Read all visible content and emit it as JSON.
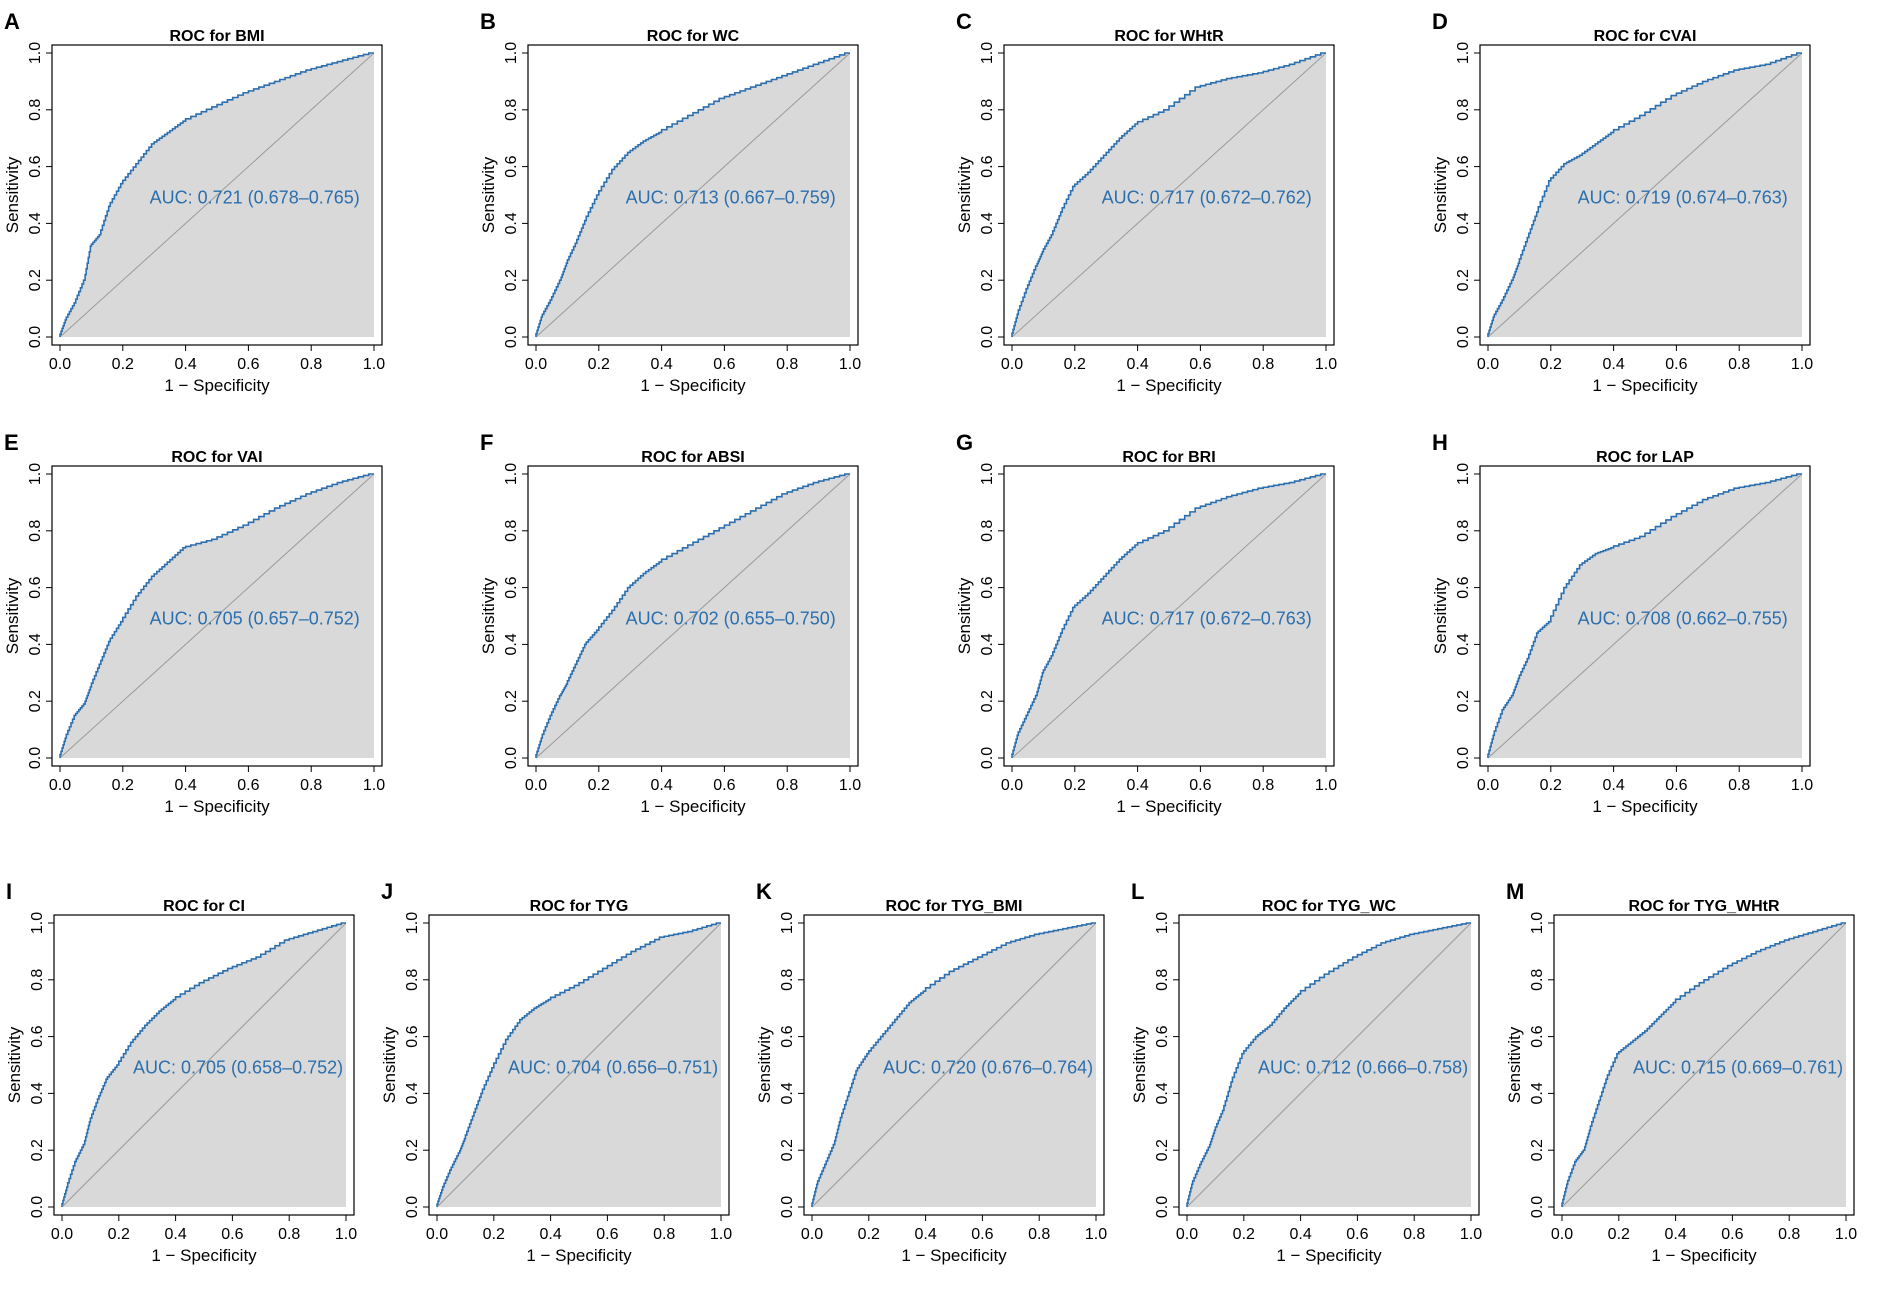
{
  "figure": {
    "background": "#ffffff"
  },
  "style": {
    "curve_color": "#2c6fae",
    "fill_color": "#d9d9d9",
    "diagonal_color": "#9a9a9a",
    "auc_color": "#2c6fae"
  },
  "chart_data": [
    {
      "letter": "A",
      "type": "line",
      "title": "ROC for BMI",
      "xlabel": "1 − Specificity",
      "ylabel": "Sensitivity",
      "xlim": [
        0,
        1
      ],
      "ylim": [
        0,
        1
      ],
      "ticks": [
        "0.0",
        "0.2",
        "0.4",
        "0.6",
        "0.8",
        "1.0"
      ],
      "auc_text": "AUC: 0.721 (0.678–0.765)",
      "x": [
        0,
        0.02,
        0.05,
        0.08,
        0.1,
        0.13,
        0.16,
        0.2,
        0.25,
        0.3,
        0.35,
        0.4,
        0.5,
        0.6,
        0.7,
        0.8,
        0.9,
        1.0
      ],
      "y": [
        0,
        0.06,
        0.12,
        0.2,
        0.32,
        0.36,
        0.46,
        0.54,
        0.61,
        0.68,
        0.72,
        0.76,
        0.81,
        0.86,
        0.9,
        0.94,
        0.97,
        1.0
      ]
    },
    {
      "letter": "B",
      "type": "line",
      "title": "ROC for WC",
      "xlabel": "1 − Specificity",
      "ylabel": "Sensitivity",
      "xlim": [
        0,
        1
      ],
      "ylim": [
        0,
        1
      ],
      "ticks": [
        "0.0",
        "0.2",
        "0.4",
        "0.6",
        "0.8",
        "1.0"
      ],
      "auc_text": "AUC: 0.713 (0.667–0.759)",
      "x": [
        0,
        0.02,
        0.05,
        0.08,
        0.1,
        0.13,
        0.16,
        0.2,
        0.25,
        0.3,
        0.35,
        0.4,
        0.5,
        0.6,
        0.7,
        0.8,
        0.9,
        1.0
      ],
      "y": [
        0,
        0.07,
        0.13,
        0.2,
        0.26,
        0.33,
        0.41,
        0.5,
        0.59,
        0.65,
        0.69,
        0.72,
        0.78,
        0.84,
        0.88,
        0.92,
        0.96,
        1.0
      ]
    },
    {
      "letter": "C",
      "type": "line",
      "title": "ROC for WHtR",
      "xlabel": "1 − Specificity",
      "ylabel": "Sensitivity",
      "xlim": [
        0,
        1
      ],
      "ylim": [
        0,
        1
      ],
      "ticks": [
        "0.0",
        "0.2",
        "0.4",
        "0.6",
        "0.8",
        "1.0"
      ],
      "auc_text": "AUC: 0.717 (0.672–0.762)",
      "x": [
        0,
        0.02,
        0.05,
        0.08,
        0.1,
        0.13,
        0.16,
        0.2,
        0.25,
        0.3,
        0.35,
        0.4,
        0.5,
        0.6,
        0.7,
        0.8,
        0.9,
        1.0
      ],
      "y": [
        0,
        0.08,
        0.17,
        0.25,
        0.3,
        0.36,
        0.44,
        0.53,
        0.58,
        0.64,
        0.7,
        0.75,
        0.8,
        0.88,
        0.91,
        0.93,
        0.96,
        1.0
      ]
    },
    {
      "letter": "D",
      "type": "line",
      "title": "ROC for CVAI",
      "xlabel": "1 − Specificity",
      "ylabel": "Sensitivity",
      "xlim": [
        0,
        1
      ],
      "ylim": [
        0,
        1
      ],
      "ticks": [
        "0.0",
        "0.2",
        "0.4",
        "0.6",
        "0.8",
        "1.0"
      ],
      "auc_text": "AUC: 0.719 (0.674–0.763)",
      "x": [
        0,
        0.02,
        0.05,
        0.08,
        0.1,
        0.13,
        0.16,
        0.2,
        0.25,
        0.3,
        0.35,
        0.4,
        0.5,
        0.6,
        0.7,
        0.8,
        0.9,
        1.0
      ],
      "y": [
        0,
        0.07,
        0.13,
        0.2,
        0.26,
        0.35,
        0.44,
        0.55,
        0.61,
        0.64,
        0.68,
        0.72,
        0.78,
        0.85,
        0.9,
        0.94,
        0.96,
        1.0
      ]
    },
    {
      "letter": "E",
      "type": "line",
      "title": "ROC for VAI",
      "xlabel": "1 − Specificity",
      "ylabel": "Sensitivity",
      "xlim": [
        0,
        1
      ],
      "ylim": [
        0,
        1
      ],
      "ticks": [
        "0.0",
        "0.2",
        "0.4",
        "0.6",
        "0.8",
        "1.0"
      ],
      "auc_text": "AUC: 0.705 (0.657–0.752)",
      "x": [
        0,
        0.02,
        0.05,
        0.08,
        0.1,
        0.13,
        0.16,
        0.2,
        0.25,
        0.3,
        0.35,
        0.4,
        0.5,
        0.6,
        0.7,
        0.8,
        0.9,
        1.0
      ],
      "y": [
        0,
        0.07,
        0.15,
        0.19,
        0.25,
        0.33,
        0.41,
        0.48,
        0.57,
        0.64,
        0.69,
        0.74,
        0.77,
        0.82,
        0.88,
        0.93,
        0.97,
        1.0
      ]
    },
    {
      "letter": "F",
      "type": "line",
      "title": "ROC for ABSI",
      "xlabel": "1 − Specificity",
      "ylabel": "Sensitivity",
      "xlim": [
        0,
        1
      ],
      "ylim": [
        0,
        1
      ],
      "ticks": [
        "0.0",
        "0.2",
        "0.4",
        "0.6",
        "0.8",
        "1.0"
      ],
      "auc_text": "AUC: 0.702 (0.655–0.750)",
      "x": [
        0,
        0.02,
        0.05,
        0.08,
        0.1,
        0.13,
        0.16,
        0.2,
        0.25,
        0.3,
        0.35,
        0.4,
        0.5,
        0.6,
        0.7,
        0.8,
        0.9,
        1.0
      ],
      "y": [
        0,
        0.07,
        0.15,
        0.22,
        0.26,
        0.33,
        0.4,
        0.45,
        0.52,
        0.6,
        0.65,
        0.69,
        0.75,
        0.81,
        0.87,
        0.93,
        0.97,
        1.0
      ]
    },
    {
      "letter": "G",
      "type": "line",
      "title": "ROC for BRI",
      "xlabel": "1 − Specificity",
      "ylabel": "Sensitivity",
      "xlim": [
        0,
        1
      ],
      "ylim": [
        0,
        1
      ],
      "ticks": [
        "0.0",
        "0.2",
        "0.4",
        "0.6",
        "0.8",
        "1.0"
      ],
      "auc_text": "AUC: 0.717 (0.672–0.763)",
      "x": [
        0,
        0.02,
        0.05,
        0.08,
        0.1,
        0.13,
        0.16,
        0.2,
        0.25,
        0.3,
        0.35,
        0.4,
        0.5,
        0.6,
        0.7,
        0.8,
        0.9,
        1.0
      ],
      "y": [
        0,
        0.08,
        0.15,
        0.22,
        0.3,
        0.36,
        0.44,
        0.53,
        0.58,
        0.64,
        0.7,
        0.75,
        0.8,
        0.88,
        0.92,
        0.95,
        0.97,
        1.0
      ]
    },
    {
      "letter": "H",
      "type": "line",
      "title": "ROC for LAP",
      "xlabel": "1 − Specificity",
      "ylabel": "Sensitivity",
      "xlim": [
        0,
        1
      ],
      "ylim": [
        0,
        1
      ],
      "ticks": [
        "0.0",
        "0.2",
        "0.4",
        "0.6",
        "0.8",
        "1.0"
      ],
      "auc_text": "AUC: 0.708 (0.662–0.755)",
      "x": [
        0,
        0.02,
        0.05,
        0.08,
        0.1,
        0.13,
        0.16,
        0.2,
        0.25,
        0.3,
        0.35,
        0.4,
        0.5,
        0.6,
        0.7,
        0.8,
        0.9,
        1.0
      ],
      "y": [
        0,
        0.08,
        0.17,
        0.22,
        0.28,
        0.35,
        0.44,
        0.48,
        0.6,
        0.68,
        0.72,
        0.74,
        0.78,
        0.85,
        0.91,
        0.95,
        0.97,
        1.0
      ]
    },
    {
      "letter": "I",
      "type": "line",
      "title": "ROC for CI",
      "xlabel": "1 − Specificity",
      "ylabel": "Sensitivity",
      "xlim": [
        0,
        1
      ],
      "ylim": [
        0,
        1
      ],
      "ticks": [
        "0.0",
        "0.2",
        "0.4",
        "0.6",
        "0.8",
        "1.0"
      ],
      "auc_text": "AUC: 0.705 (0.658–0.752)",
      "x": [
        0,
        0.02,
        0.05,
        0.08,
        0.1,
        0.13,
        0.16,
        0.2,
        0.25,
        0.3,
        0.35,
        0.4,
        0.5,
        0.6,
        0.7,
        0.8,
        0.9,
        1.0
      ],
      "y": [
        0,
        0.07,
        0.16,
        0.22,
        0.3,
        0.38,
        0.45,
        0.5,
        0.58,
        0.64,
        0.69,
        0.73,
        0.79,
        0.84,
        0.88,
        0.94,
        0.97,
        1.0
      ]
    },
    {
      "letter": "J",
      "type": "line",
      "title": "ROC for TYG",
      "xlabel": "1 − Specificity",
      "ylabel": "Sensitivity",
      "xlim": [
        0,
        1
      ],
      "ylim": [
        0,
        1
      ],
      "ticks": [
        "0.0",
        "0.2",
        "0.4",
        "0.6",
        "0.8",
        "1.0"
      ],
      "auc_text": "AUC: 0.704 (0.656–0.751)",
      "x": [
        0,
        0.02,
        0.05,
        0.08,
        0.1,
        0.13,
        0.16,
        0.2,
        0.25,
        0.3,
        0.35,
        0.4,
        0.5,
        0.6,
        0.7,
        0.8,
        0.9,
        1.0
      ],
      "y": [
        0,
        0.06,
        0.13,
        0.19,
        0.24,
        0.32,
        0.4,
        0.49,
        0.59,
        0.66,
        0.7,
        0.73,
        0.78,
        0.84,
        0.9,
        0.95,
        0.97,
        1.0
      ]
    },
    {
      "letter": "K",
      "type": "line",
      "title": "ROC for TYG_BMI",
      "xlabel": "1 − Specificity",
      "ylabel": "Sensitivity",
      "xlim": [
        0,
        1
      ],
      "ylim": [
        0,
        1
      ],
      "ticks": [
        "0.0",
        "0.2",
        "0.4",
        "0.6",
        "0.8",
        "1.0"
      ],
      "auc_text": "AUC: 0.720 (0.676–0.764)",
      "x": [
        0,
        0.02,
        0.05,
        0.08,
        0.1,
        0.13,
        0.16,
        0.2,
        0.25,
        0.3,
        0.35,
        0.4,
        0.5,
        0.6,
        0.7,
        0.8,
        0.9,
        1.0
      ],
      "y": [
        0,
        0.08,
        0.15,
        0.22,
        0.3,
        0.39,
        0.48,
        0.54,
        0.6,
        0.66,
        0.72,
        0.76,
        0.83,
        0.88,
        0.93,
        0.96,
        0.98,
        1.0
      ]
    },
    {
      "letter": "L",
      "type": "line",
      "title": "ROC for TYG_WC",
      "xlabel": "1 − Specificity",
      "ylabel": "Sensitivity",
      "xlim": [
        0,
        1
      ],
      "ylim": [
        0,
        1
      ],
      "ticks": [
        "0.0",
        "0.2",
        "0.4",
        "0.6",
        "0.8",
        "1.0"
      ],
      "auc_text": "AUC: 0.712 (0.666–0.758)",
      "x": [
        0,
        0.02,
        0.05,
        0.08,
        0.1,
        0.13,
        0.16,
        0.2,
        0.25,
        0.3,
        0.35,
        0.4,
        0.5,
        0.6,
        0.7,
        0.8,
        0.9,
        1.0
      ],
      "y": [
        0,
        0.08,
        0.15,
        0.21,
        0.27,
        0.34,
        0.44,
        0.54,
        0.6,
        0.64,
        0.7,
        0.75,
        0.82,
        0.88,
        0.93,
        0.96,
        0.98,
        1.0
      ]
    },
    {
      "letter": "M",
      "type": "line",
      "title": "ROC for TYG_WHtR",
      "xlabel": "1 − Specificity",
      "ylabel": "Sensitivity",
      "xlim": [
        0,
        1
      ],
      "ylim": [
        0,
        1
      ],
      "ticks": [
        "0.0",
        "0.2",
        "0.4",
        "0.6",
        "0.8",
        "1.0"
      ],
      "auc_text": "AUC: 0.715 (0.669–0.761)",
      "x": [
        0,
        0.02,
        0.05,
        0.08,
        0.1,
        0.13,
        0.16,
        0.2,
        0.25,
        0.3,
        0.35,
        0.4,
        0.5,
        0.6,
        0.7,
        0.8,
        0.9,
        1.0
      ],
      "y": [
        0,
        0.08,
        0.16,
        0.2,
        0.27,
        0.36,
        0.45,
        0.54,
        0.58,
        0.62,
        0.67,
        0.72,
        0.79,
        0.85,
        0.9,
        0.94,
        0.97,
        1.0
      ]
    }
  ]
}
